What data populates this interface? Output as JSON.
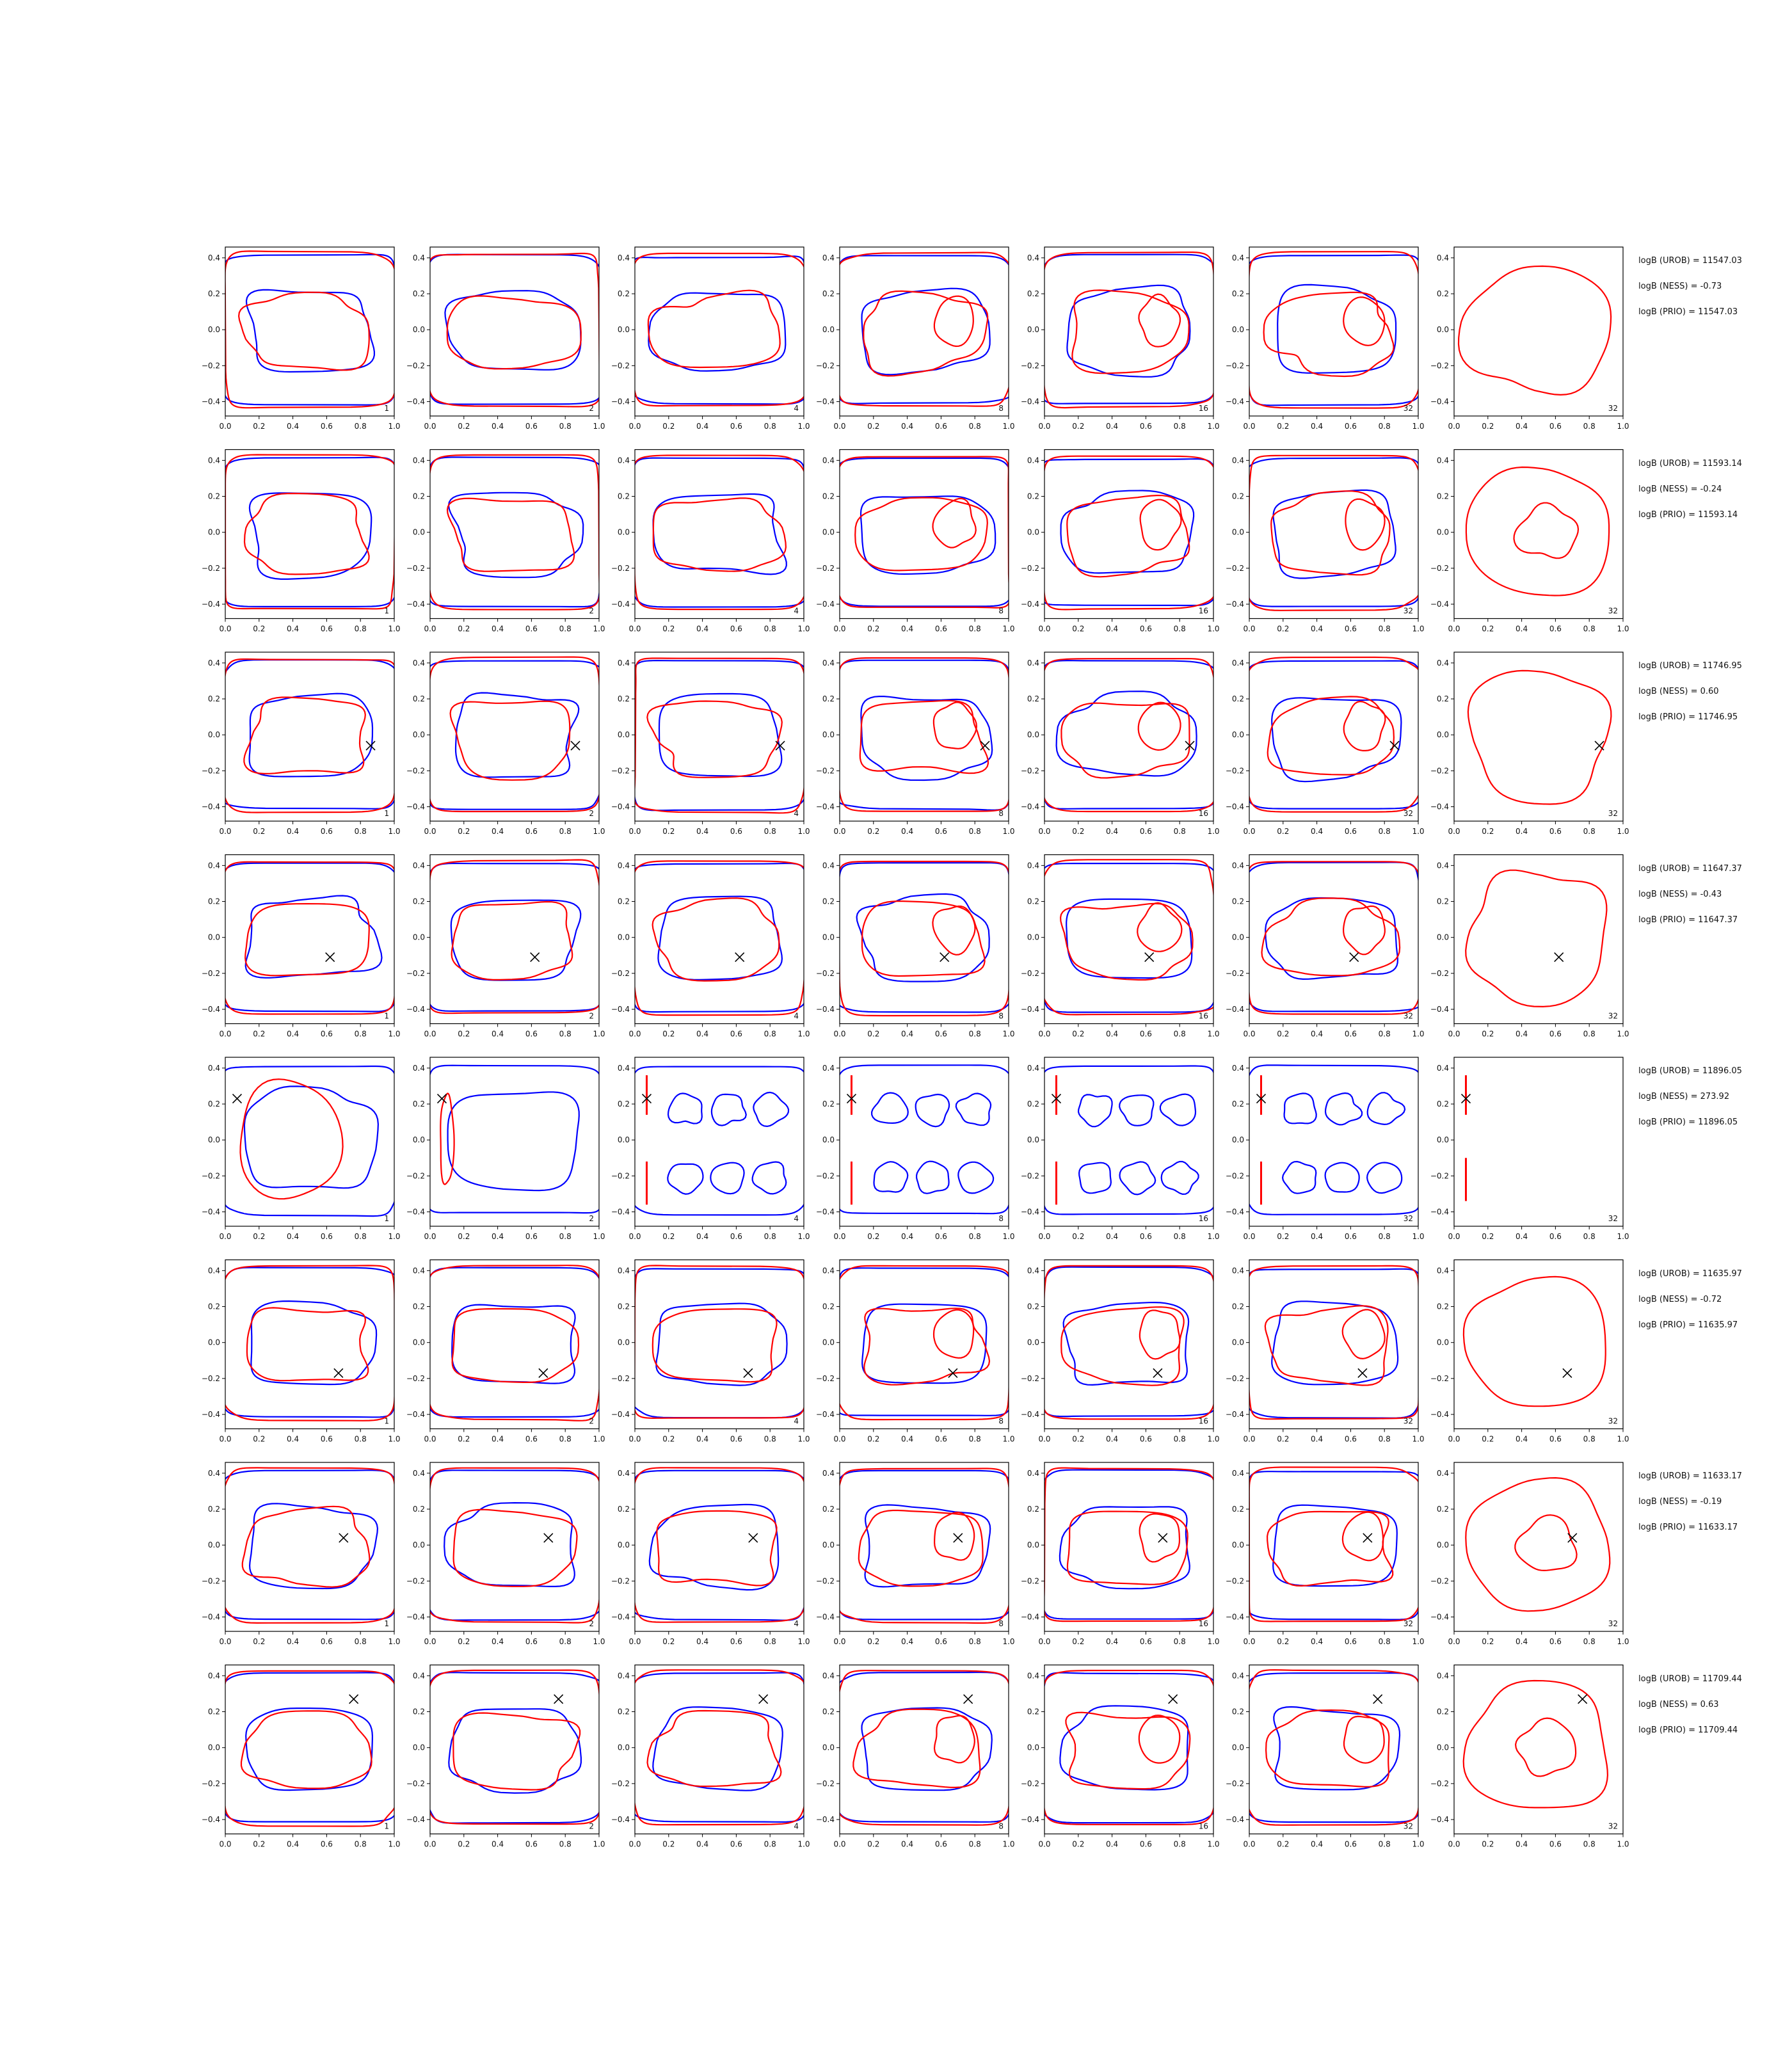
{
  "figure": {
    "x_ticks": [
      "0.0",
      "0.2",
      "0.4",
      "0.6",
      "0.8",
      "1.0"
    ],
    "y_ticks": [
      "0.4",
      "0.2",
      "0.0",
      "−0.2",
      "−0.4"
    ],
    "x_range": [
      0,
      1
    ],
    "y_range": [
      -0.48,
      0.46
    ],
    "panel_labels": [
      "1",
      "2",
      "4",
      "8",
      "16",
      "32",
      "32"
    ],
    "colors": {
      "contour_a": "#0000ff",
      "contour_b": "#ff0000",
      "marker": "#000000",
      "axes": "#000000"
    },
    "marker_symbol": "x"
  },
  "chart_data": {
    "type": "contour-grid",
    "rows": [
      {
        "panel_labels": [
          "1",
          "2",
          "4",
          "8",
          "16",
          "32",
          "32"
        ],
        "marker": null,
        "stats": [
          "logB (UROB) = 11547.03",
          "logB (NESS) = -0.73",
          "logB (PRIO) = 11547.03"
        ]
      },
      {
        "panel_labels": [
          "1",
          "2",
          "4",
          "8",
          "16",
          "32",
          "32"
        ],
        "marker": null,
        "stats": [
          "logB (UROB) = 11593.14",
          "logB (NESS) = -0.24",
          "logB (PRIO) = 11593.14"
        ]
      },
      {
        "panel_labels": [
          "1",
          "2",
          "4",
          "8",
          "16",
          "32",
          "32"
        ],
        "marker": [
          0.86,
          -0.06
        ],
        "stats": [
          "logB (UROB) = 11746.95",
          "logB (NESS) = 0.60",
          "logB (PRIO) = 11746.95"
        ]
      },
      {
        "panel_labels": [
          "1",
          "2",
          "4",
          "8",
          "16",
          "32",
          "32"
        ],
        "marker": [
          0.62,
          -0.11
        ],
        "stats": [
          "logB (UROB) = 11647.37",
          "logB (NESS) = -0.43",
          "logB (PRIO) = 11647.37"
        ]
      },
      {
        "panel_labels": [
          "1",
          "2",
          "4",
          "8",
          "16",
          "32",
          "32"
        ],
        "marker": [
          0.07,
          0.23
        ],
        "stats": [
          "logB (UROB) = 11896.05",
          "logB (NESS) = 273.92",
          "logB (PRIO) = 11896.05"
        ]
      },
      {
        "panel_labels": [
          "1",
          "2",
          "4",
          "8",
          "16",
          "32",
          "32"
        ],
        "marker": [
          0.67,
          -0.17
        ],
        "stats": [
          "logB (UROB) = 11635.97",
          "logB (NESS) = -0.72",
          "logB (PRIO) = 11635.97"
        ]
      },
      {
        "panel_labels": [
          "1",
          "2",
          "4",
          "8",
          "16",
          "32",
          "32"
        ],
        "marker": [
          0.7,
          0.04
        ],
        "stats": [
          "logB (UROB) = 11633.17",
          "logB (NESS) = -0.19",
          "logB (PRIO) = 11633.17"
        ]
      },
      {
        "panel_labels": [
          "1",
          "2",
          "4",
          "8",
          "16",
          "32",
          "32"
        ],
        "marker": [
          0.76,
          0.27
        ],
        "stats": [
          "logB (UROB) = 11709.44",
          "logB (NESS) = 0.63",
          "logB (PRIO) = 11709.44"
        ]
      }
    ]
  }
}
